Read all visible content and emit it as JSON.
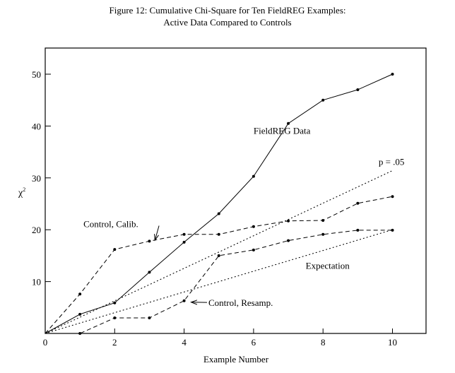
{
  "title_line1": "Figure 12:  Cumulative  Chi-Square  for  Ten FieldREG  Examples:",
  "title_line2": "Active Data Compared to Controls",
  "chart_data": {
    "type": "line",
    "title": "Figure 12: Cumulative Chi-Square for Ten FieldREG Examples: Active Data Compared to Controls",
    "xlabel": "Example Number",
    "ylabel": "χ²",
    "xlim": [
      0,
      11
    ],
    "ylim": [
      0,
      55
    ],
    "xticks": [
      0,
      2,
      4,
      6,
      8,
      10
    ],
    "yticks": [
      10,
      20,
      30,
      40,
      50
    ],
    "grid": false,
    "x": [
      0,
      1,
      2,
      3,
      4,
      5,
      6,
      7,
      8,
      9,
      10
    ],
    "series": [
      {
        "name": "FieldREG Data",
        "style": "solid",
        "markers": true,
        "values": [
          0,
          3.7,
          5.9,
          11.8,
          17.6,
          23.1,
          30.3,
          40.5,
          45.0,
          47.0,
          50.0
        ]
      },
      {
        "name": "Control, Calib.",
        "style": "dashed",
        "markers": true,
        "values": [
          0,
          7.6,
          16.2,
          17.8,
          19.1,
          19.1,
          20.6,
          21.7,
          21.8,
          25.1,
          26.4
        ]
      },
      {
        "name": "Control, Resamp.",
        "style": "dashed",
        "markers": true,
        "values": [
          0,
          0.0,
          3.0,
          3.0,
          6.3,
          15.0,
          16.1,
          17.9,
          19.1,
          19.9,
          19.9
        ]
      },
      {
        "name": "p = .05",
        "style": "dotted",
        "markers": false,
        "values": [
          0,
          3.14,
          6.28,
          9.42,
          12.56,
          15.7,
          18.84,
          21.98,
          25.12,
          28.26,
          31.4
        ]
      },
      {
        "name": "Expectation",
        "style": "dotted",
        "markers": false,
        "values": [
          0,
          2,
          4,
          6,
          8,
          10,
          12,
          14,
          16,
          18,
          20
        ]
      }
    ],
    "annotations": [
      {
        "text": "FieldREG Data",
        "x": 6.0,
        "y": 38.5
      },
      {
        "text": "p = .05",
        "x": 9.6,
        "y": 32.5
      },
      {
        "text": "Control, Calib.",
        "x": 1.1,
        "y": 20.5,
        "arrow_to": [
          3.2,
          17.7
        ]
      },
      {
        "text": "Expectation",
        "x": 7.5,
        "y": 12.5
      },
      {
        "text": "Control, Resamp.",
        "x": 4.7,
        "y": 5.3,
        "arrow_to": [
          4.1,
          6.3
        ]
      }
    ]
  }
}
